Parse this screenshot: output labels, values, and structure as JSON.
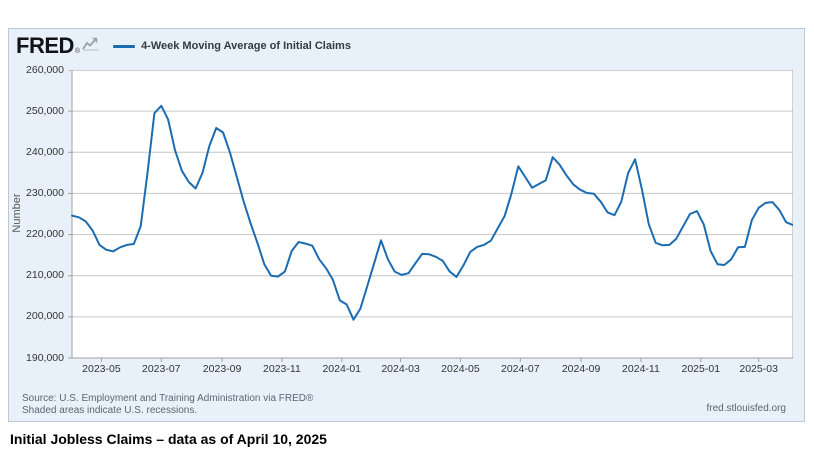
{
  "header": {
    "logo_text": "FRED",
    "registered_mark": "®",
    "legend_label": "4-Week Moving Average of Initial Claims"
  },
  "footer": {
    "source_line1": "Source: U.S. Employment and Training Administration via FRED®",
    "source_line2": "Shaded areas indicate U.S. recessions.",
    "site_url": "fred.stlouisfed.org"
  },
  "caption": "Initial Jobless Claims – data as of April 10, 2025",
  "colors": {
    "accent_line": "#1b6cb1",
    "widget_bg": "#e8f1f9",
    "plot_bg": "#ffffff",
    "grid": "#c6c6c6",
    "axis_border": "#a0a0a0"
  },
  "chart_data": {
    "type": "line",
    "title": "4-Week Moving Average of Initial Claims",
    "xlabel": "",
    "ylabel": "Number",
    "ylim": [
      190000,
      260000
    ],
    "grid": true,
    "legend_position": "top-left",
    "y_ticks": [
      260000,
      250000,
      240000,
      230000,
      220000,
      210000,
      200000,
      190000
    ],
    "y_tick_labels": [
      "260,000",
      "250,000",
      "240,000",
      "230,000",
      "220,000",
      "210,000",
      "200,000",
      "190,000"
    ],
    "x_ticks": [
      "2023-05",
      "2023-07",
      "2023-09",
      "2023-11",
      "2024-01",
      "2024-03",
      "2024-05",
      "2024-07",
      "2024-09",
      "2024-11",
      "2025-01",
      "2025-03"
    ],
    "series": [
      {
        "name": "4-Week Moving Average of Initial Claims",
        "frequency": "weekly",
        "start_date": "2023-04-01",
        "end_date": "2025-04-05",
        "values": [
          224600,
          224200,
          223200,
          221000,
          217500,
          216300,
          215900,
          216900,
          217500,
          217700,
          222000,
          235000,
          249500,
          251300,
          248000,
          240500,
          235500,
          232800,
          231200,
          235000,
          241500,
          245900,
          244800,
          240000,
          234000,
          228000,
          222800,
          218000,
          212800,
          210000,
          209800,
          211000,
          216000,
          218200,
          217800,
          217300,
          214000,
          211800,
          209000,
          204000,
          203000,
          199300,
          202000,
          207500,
          213000,
          218600,
          214000,
          211000,
          210200,
          210600,
          213000,
          215300,
          215200,
          214600,
          213600,
          211000,
          209700,
          212500,
          215800,
          217000,
          217500,
          218500,
          221500,
          224500,
          230000,
          236600,
          234000,
          231400,
          232300,
          233200,
          238800,
          237000,
          234400,
          232200,
          230900,
          230100,
          229900,
          228000,
          225400,
          224700,
          228000,
          235000,
          238300,
          231000,
          222500,
          218000,
          217400,
          217500,
          219000,
          222000,
          225000,
          225700,
          222500,
          216000,
          212800,
          212600,
          214000,
          216900,
          217000,
          223500,
          226500,
          227700,
          227900,
          226000,
          223000,
          222300
        ]
      }
    ]
  }
}
